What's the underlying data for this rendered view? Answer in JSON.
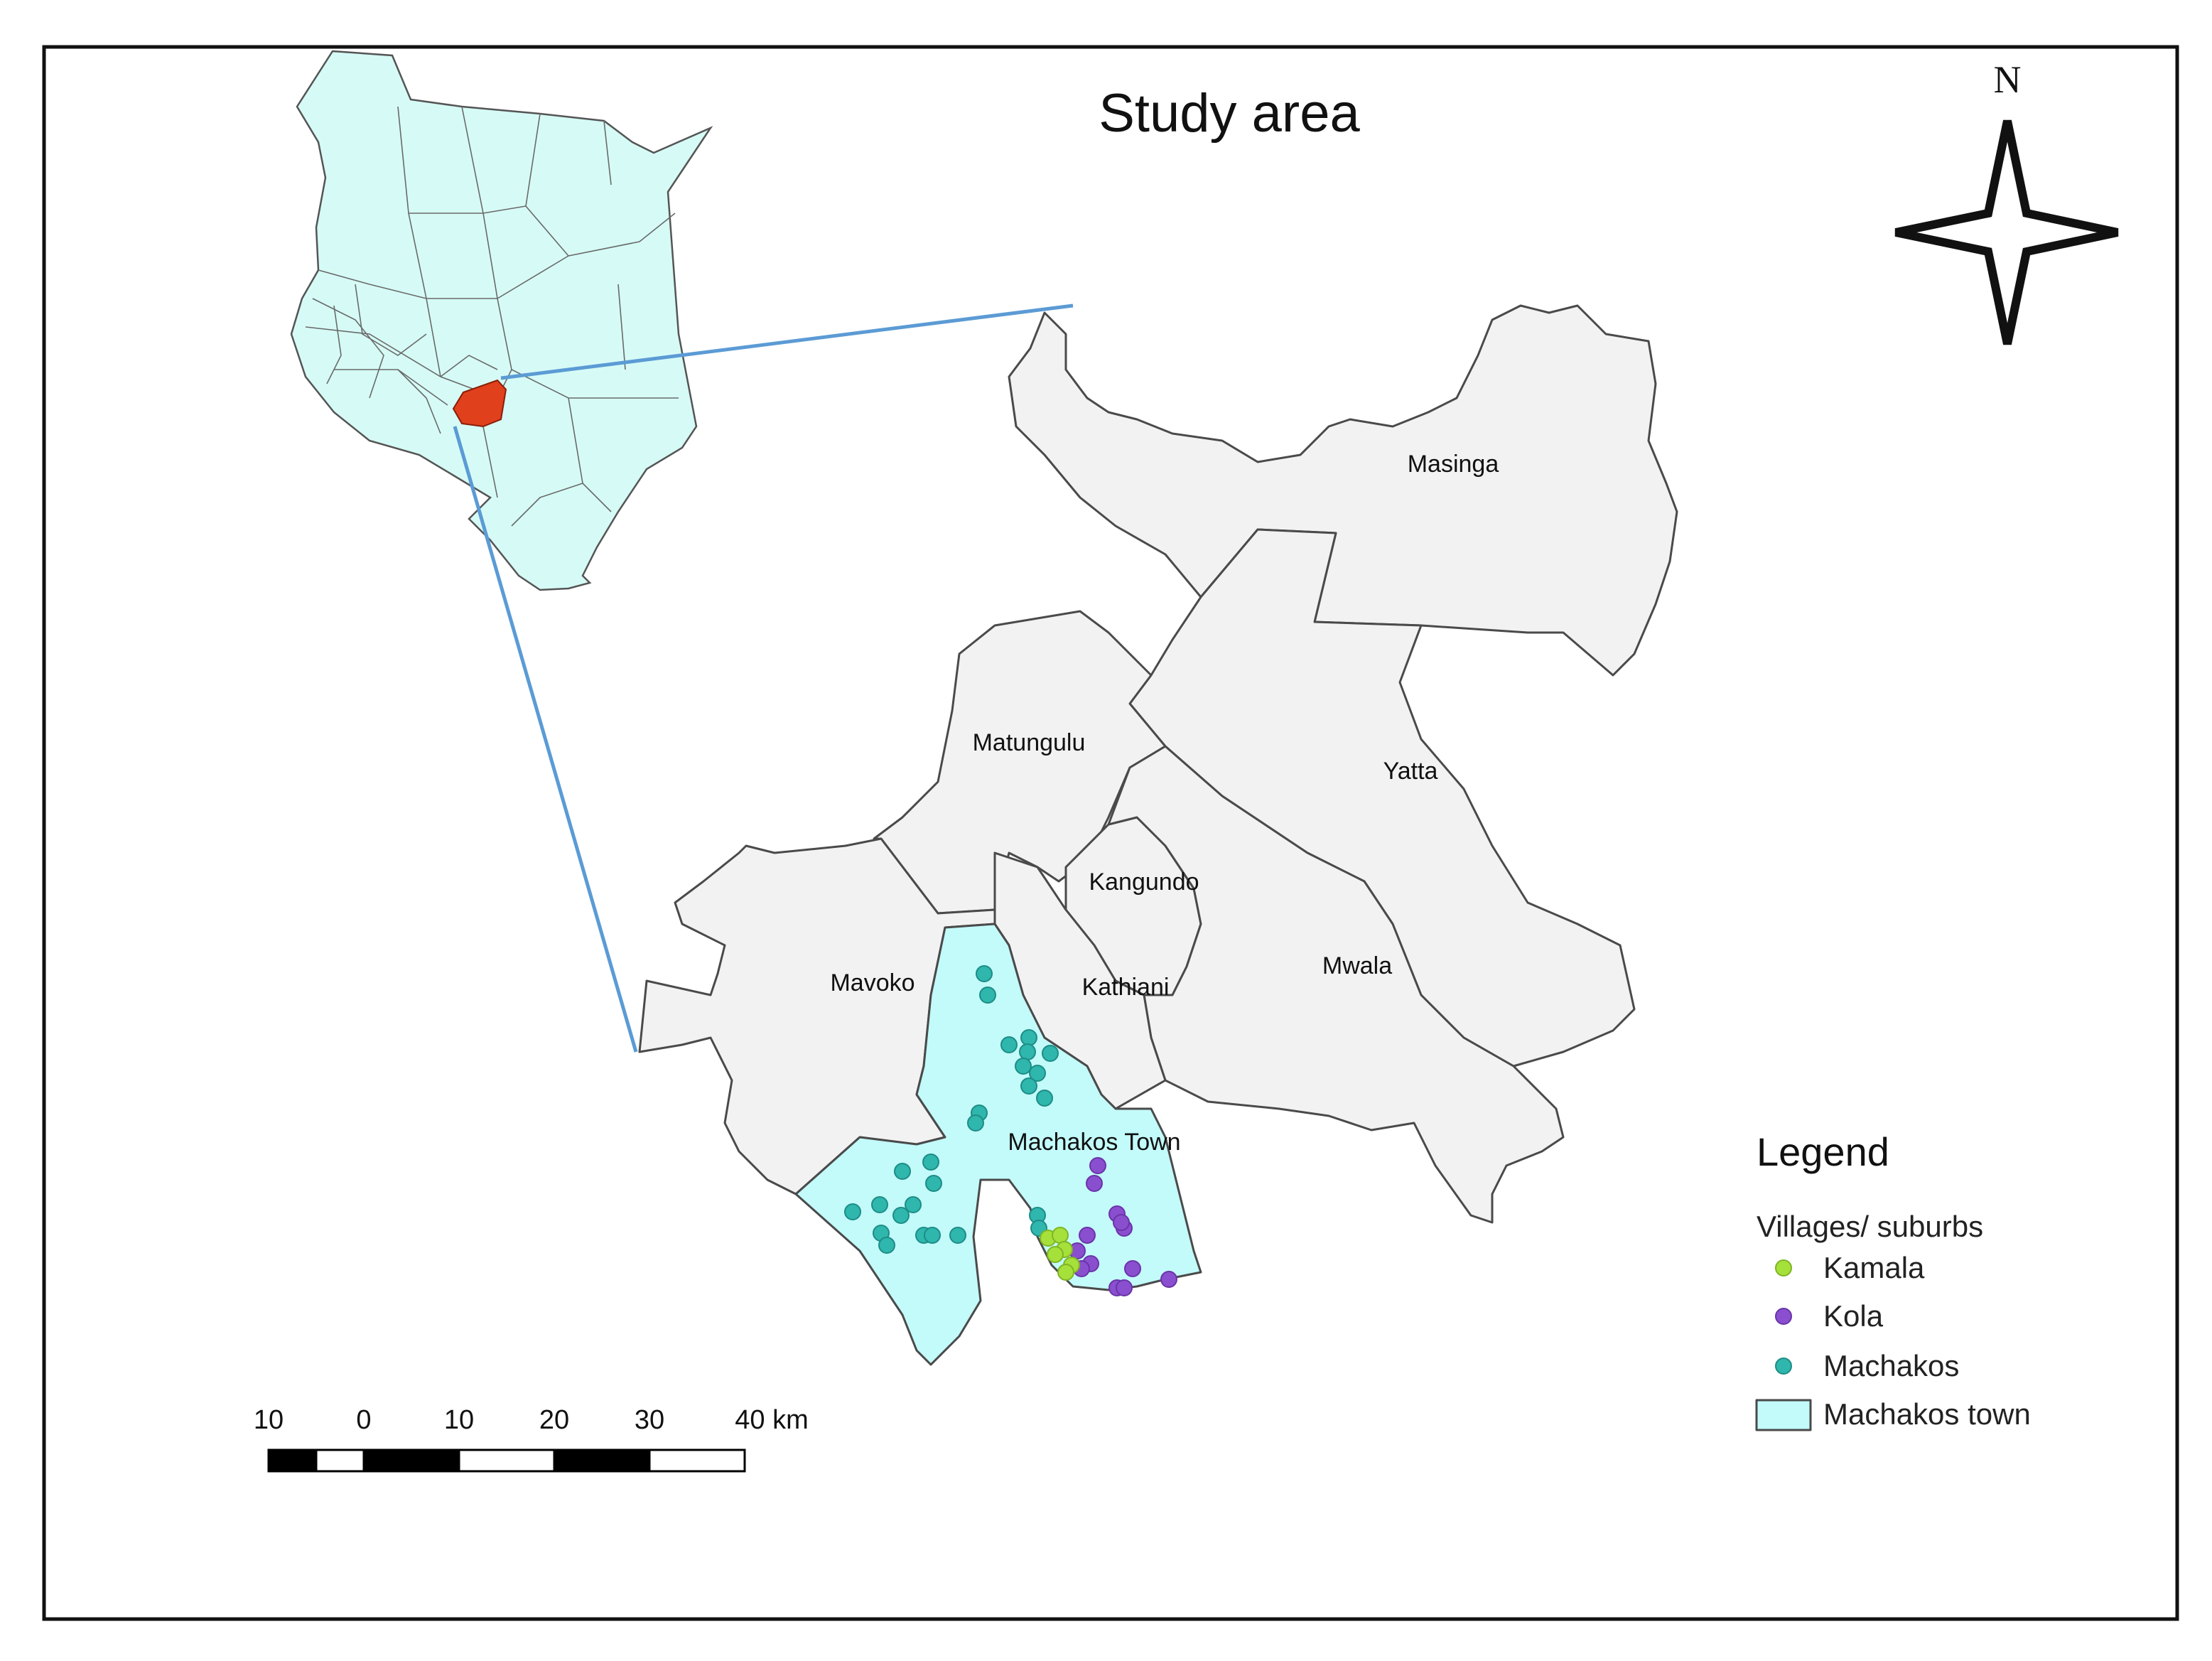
{
  "map": {
    "title": "Study area",
    "north_label": "N",
    "regions": [
      {
        "key": "masinga",
        "label": "Masinga"
      },
      {
        "key": "yatta",
        "label": "Yatta"
      },
      {
        "key": "matungulu",
        "label": "Matungulu"
      },
      {
        "key": "kangundo",
        "label": "Kangundo"
      },
      {
        "key": "mwala",
        "label": "Mwala"
      },
      {
        "key": "mavoko",
        "label": "Mavoko"
      },
      {
        "key": "kathiani",
        "label": "Kathiani"
      },
      {
        "key": "machakos_town",
        "label": "Machakos Town"
      }
    ],
    "scale_bar": {
      "ticks": [
        "10",
        "0",
        "10",
        "20",
        "30",
        "40 km"
      ]
    },
    "legend": {
      "title": "Legend",
      "group_title": "Villages/ suburbs",
      "items": [
        {
          "label": "Kamala",
          "symbol": "point",
          "color": "#a6e03a"
        },
        {
          "label": "Kola",
          "symbol": "point",
          "color": "#8a4fcf"
        },
        {
          "label": "Machakos",
          "symbol": "point",
          "color": "#2fb6ad"
        },
        {
          "label": "Machakos town",
          "symbol": "polygon",
          "color": "#c3fafa"
        }
      ]
    },
    "colors": {
      "sub_county_fill": "#f2f2f2",
      "machakos_town_fill": "#c3fafa",
      "inset_highlight": "#e0401c",
      "connector_lines": "#5b9bd5"
    }
  }
}
